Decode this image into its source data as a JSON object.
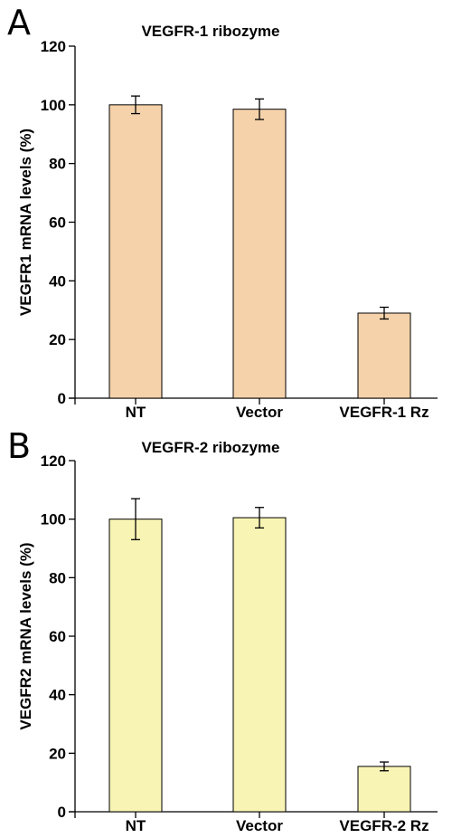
{
  "chart_data": [
    {
      "panel": "A",
      "type": "bar",
      "title": "VEGFR-1 ribozyme",
      "ylabel": "VEGFR1 mRNA levels (%)",
      "xlabel": "",
      "categories": [
        "NT",
        "Vector",
        "VEGFR-1 Rz"
      ],
      "values": [
        100,
        98.5,
        29
      ],
      "errors": [
        3,
        3.5,
        2
      ],
      "ylim": [
        0,
        120
      ],
      "yticks": [
        "0",
        "20",
        "40",
        "60",
        "80",
        "100",
        "120"
      ],
      "color": "#f5d2aa",
      "grid": false
    },
    {
      "panel": "B",
      "type": "bar",
      "title": "VEGFR-2 ribozyme",
      "ylabel": "VEGFR2 mRNA levels (%)",
      "xlabel": "",
      "categories": [
        "NT",
        "Vector",
        "VEGFR-2 Rz"
      ],
      "values": [
        100,
        100.5,
        15.5
      ],
      "errors": [
        7,
        3.5,
        1.5
      ],
      "ylim": [
        0,
        120
      ],
      "yticks": [
        "0",
        "20",
        "40",
        "60",
        "80",
        "100",
        "120"
      ],
      "color": "#f8f4b4",
      "grid": false
    }
  ]
}
